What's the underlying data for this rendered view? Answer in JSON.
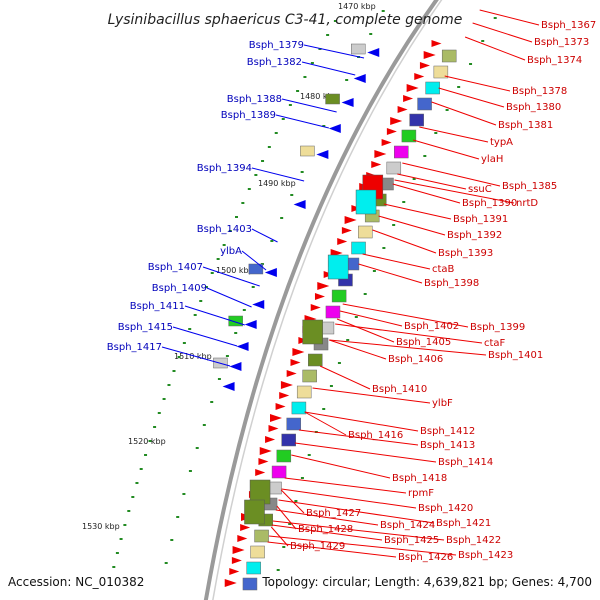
{
  "title": "Lysinibacillus sphaericus C3-41, complete genome",
  "footer": {
    "accession": "Accession: NC_010382",
    "summary": "Topology: circular; Length: 4,639,821 bp; Genes: 4,700"
  },
  "scale_labels": [
    "1470 kbp",
    "1480 kbp",
    "1490 kbp",
    "1500 kbp",
    "1510 kbp",
    "1520 kbp",
    "1530 kbp"
  ],
  "colors": {
    "backbone": "#9a9a9a",
    "cds_red": "#ee0000",
    "cds_blue": "#0000ee",
    "rna_green": "#228b22",
    "label_blue": "#0000bb",
    "label_red": "#cc0000"
  },
  "genes_left": [
    "Bsph_1379",
    "Bsph_1382",
    "Bsph_1388",
    "Bsph_1389",
    "Bsph_1394",
    "Bsph_1403",
    "ylbA",
    "Bsph_1407",
    "Bsph_1409",
    "Bsph_1411",
    "Bsph_1415",
    "Bsph_1417"
  ],
  "genes_right": [
    "Bsph_1367",
    "Bsph_1373",
    "Bsph_1374",
    "Bsph_1378",
    "Bsph_1380",
    "Bsph_1381",
    "typA",
    "ylaH",
    "Bsph_1385",
    "ssuC",
    "Bsph_1390",
    "nrtD",
    "Bsph_1391",
    "Bsph_1392",
    "Bsph_1393",
    "ctaB",
    "Bsph_1398",
    "Bsph_1399",
    "Bsph_1402",
    "ctaF",
    "Bsph_1405",
    "Bsph_1401",
    "Bsph_1406",
    "Bsph_1410",
    "ylbF",
    "Bsph_1412",
    "Bsph_1416",
    "Bsph_1413",
    "Bsph_1414",
    "Bsph_1418",
    "rpmF",
    "Bsph_1420",
    "Bsph_1421",
    "Bsph_1424",
    "Bsph_1422",
    "Bsph_1427",
    "Bsph_1425",
    "Bsph_1423",
    "Bsph_1428",
    "Bsph_1426",
    "Bsph_1429"
  ]
}
